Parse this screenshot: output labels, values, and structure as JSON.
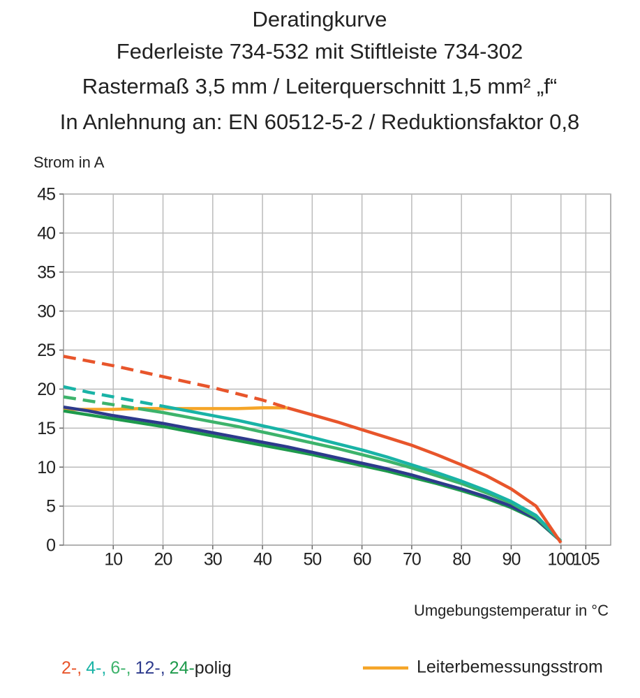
{
  "chart_data": {
    "type": "line",
    "title": [
      "Deratingkurve",
      "Federleiste 734-532 mit Stiftleiste 734-302",
      "Rastermaß 3,5 mm / Leiterquerschnitt 1,5 mm² „f“",
      "In Anlehnung an: EN 60512-5-2 / Reduktionsfaktor 0,8"
    ],
    "y_label": "Strom in A",
    "x_label": "Umgebungstemperatur in °C",
    "x": [
      0,
      5,
      10,
      15,
      20,
      25,
      30,
      35,
      40,
      45,
      50,
      55,
      60,
      65,
      70,
      75,
      80,
      85,
      90,
      95,
      100
    ],
    "xlim": [
      0,
      110
    ],
    "xticks": [
      10,
      20,
      30,
      40,
      50,
      60,
      70,
      80,
      90,
      100,
      105
    ],
    "ylim": [
      0,
      45
    ],
    "yticks": [
      0,
      5,
      10,
      15,
      20,
      25,
      30,
      35,
      40,
      45
    ],
    "grid": true,
    "legend_suffix": "polig",
    "series": [
      {
        "name": "2-,",
        "color": "#e8552b",
        "dashed_values": [
          24.2,
          23.6,
          23.0,
          22.3,
          21.6,
          20.9,
          20.2,
          19.4,
          18.6,
          17.6,
          null,
          null,
          null,
          null,
          null,
          null,
          null,
          null,
          null,
          null,
          null
        ],
        "values": [
          null,
          null,
          null,
          null,
          null,
          null,
          null,
          null,
          null,
          17.6,
          16.7,
          15.8,
          14.8,
          13.8,
          12.8,
          11.6,
          10.3,
          8.9,
          7.2,
          5.0,
          0.3
        ]
      },
      {
        "name": "4-,",
        "color": "#19b3a6",
        "dashed_values": [
          20.3,
          19.6,
          19.0,
          18.4,
          17.8,
          null,
          null,
          null,
          null,
          null,
          null,
          null,
          null,
          null,
          null,
          null,
          null,
          null,
          null,
          null,
          null
        ],
        "values": [
          null,
          null,
          null,
          null,
          17.8,
          17.2,
          16.6,
          16.0,
          15.3,
          14.6,
          13.8,
          13.0,
          12.2,
          11.3,
          10.3,
          9.3,
          8.2,
          7.0,
          5.6,
          3.8,
          0.5
        ]
      },
      {
        "name": "6-,",
        "color": "#3db36b",
        "dashed_values": [
          19.0,
          18.5,
          18.0,
          17.5,
          null,
          null,
          null,
          null,
          null,
          null,
          null,
          null,
          null,
          null,
          null,
          null,
          null,
          null,
          null,
          null,
          null
        ],
        "values": [
          null,
          null,
          null,
          17.5,
          17.0,
          16.4,
          15.8,
          15.2,
          14.5,
          13.8,
          13.1,
          12.4,
          11.6,
          10.8,
          9.9,
          8.9,
          7.9,
          6.7,
          5.4,
          3.6,
          0.5
        ]
      },
      {
        "name": "12-,",
        "color": "#2d3a8c",
        "values": [
          17.7,
          17.2,
          16.6,
          16.1,
          15.6,
          15.0,
          14.4,
          13.8,
          13.2,
          12.6,
          11.9,
          11.2,
          10.5,
          9.8,
          9.0,
          8.1,
          7.2,
          6.2,
          5.0,
          3.4,
          0.5
        ]
      },
      {
        "name": "24-",
        "color": "#1e9a4c",
        "values": [
          17.2,
          16.7,
          16.2,
          15.7,
          15.2,
          14.6,
          14.0,
          13.4,
          12.8,
          12.2,
          11.6,
          10.9,
          10.2,
          9.5,
          8.7,
          7.9,
          7.0,
          6.0,
          4.8,
          3.3,
          0.5
        ]
      },
      {
        "name": "Leiterbemessungsstrom",
        "color": "#f5a528",
        "values": [
          17.4,
          17.4,
          17.4,
          17.5,
          17.5,
          17.5,
          17.5,
          17.5,
          17.6,
          17.6,
          null,
          null,
          null,
          null,
          null,
          null,
          null,
          null,
          null,
          null,
          null
        ]
      }
    ]
  }
}
